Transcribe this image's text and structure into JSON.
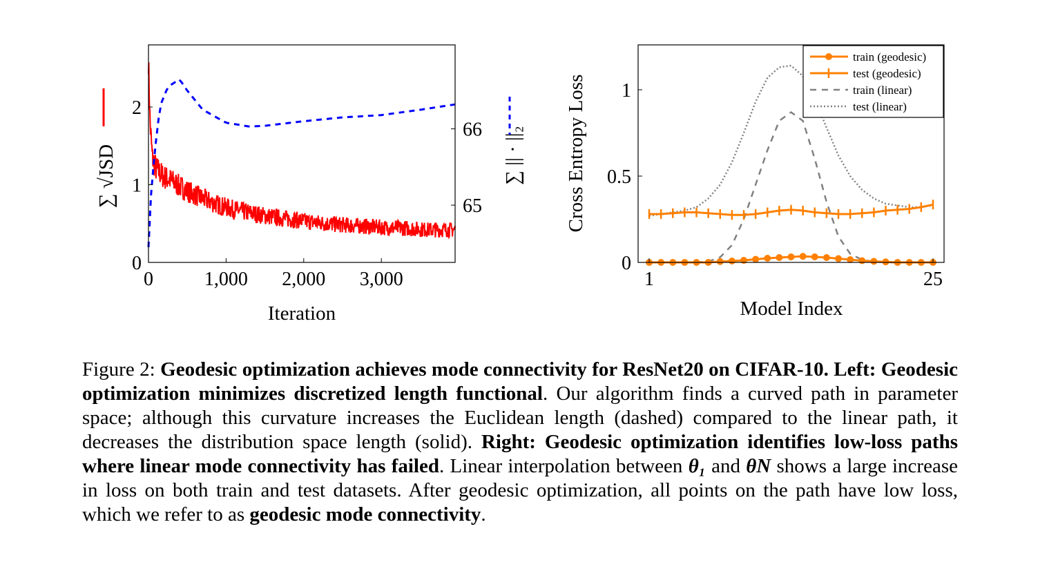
{
  "chart_data": [
    {
      "type": "line",
      "xlabel": "Iteration",
      "ylabel_left": "∑ √JSD",
      "ylabel_right": "∑ || · ||₂",
      "xlim": [
        0,
        3950
      ],
      "ylim_left": [
        0,
        2.8
      ],
      "ylim_right": [
        64.25,
        67.1
      ],
      "x_ticks": [
        "0",
        "1,000",
        "2,000",
        "3,000"
      ],
      "y_ticks_left": [
        "0",
        "1",
        "2"
      ],
      "y_ticks_right": [
        "65",
        "66"
      ],
      "series": [
        {
          "axis": "left",
          "style": "solid",
          "color": "#ff0000",
          "x": [
            0,
            20,
            50,
            100,
            200,
            300,
            400,
            500,
            700,
            900,
            1100,
            1300,
            1500,
            1800,
            2100,
            2400,
            2700,
            3000,
            3300,
            3600,
            3950
          ],
          "y": [
            2.6,
            1.8,
            1.35,
            1.2,
            1.1,
            1.05,
            0.98,
            0.92,
            0.82,
            0.74,
            0.68,
            0.64,
            0.6,
            0.56,
            0.52,
            0.49,
            0.47,
            0.45,
            0.44,
            0.42,
            0.42
          ]
        },
        {
          "axis": "right",
          "style": "dashed",
          "color": "#0000ff",
          "x": [
            0,
            30,
            80,
            150,
            250,
            400,
            500,
            700,
            1000,
            1300,
            1500,
            2000,
            2500,
            3000,
            3500,
            3950
          ],
          "y": [
            64.45,
            65.1,
            65.7,
            66.3,
            66.55,
            66.65,
            66.5,
            66.25,
            66.08,
            66.03,
            66.04,
            66.1,
            66.15,
            66.18,
            66.25,
            66.32
          ]
        }
      ]
    },
    {
      "type": "line",
      "xlabel": "Model Index",
      "ylabel": "Cross Entropy Loss",
      "xlim": [
        1,
        25
      ],
      "ylim": [
        0,
        1.26
      ],
      "x_ticks": [
        "1",
        "25"
      ],
      "y_ticks": [
        "0",
        "0.5",
        "1"
      ],
      "legend_position": "top-right",
      "series": [
        {
          "name": "train (geodesic)",
          "style": "circle-markers",
          "color": "#ff8000",
          "x": [
            1,
            2,
            3,
            4,
            5,
            6,
            7,
            8,
            9,
            10,
            11,
            12,
            13,
            14,
            15,
            16,
            17,
            18,
            19,
            20,
            21,
            22,
            23,
            24,
            25
          ],
          "y": [
            0.0,
            0.0,
            0.0,
            0.0,
            0.0,
            0.0,
            0.005,
            0.008,
            0.012,
            0.018,
            0.024,
            0.028,
            0.032,
            0.035,
            0.032,
            0.028,
            0.022,
            0.016,
            0.01,
            0.006,
            0.003,
            0.0,
            0.0,
            0.0,
            0.0
          ]
        },
        {
          "name": "test (geodesic)",
          "style": "plus-markers",
          "color": "#ff8000",
          "x": [
            1,
            2,
            3,
            4,
            5,
            6,
            7,
            8,
            9,
            10,
            11,
            12,
            13,
            14,
            15,
            16,
            17,
            18,
            19,
            20,
            21,
            22,
            23,
            24,
            25
          ],
          "y": [
            0.28,
            0.28,
            0.285,
            0.29,
            0.29,
            0.285,
            0.28,
            0.275,
            0.275,
            0.28,
            0.29,
            0.3,
            0.305,
            0.3,
            0.29,
            0.285,
            0.28,
            0.28,
            0.285,
            0.29,
            0.3,
            0.305,
            0.31,
            0.32,
            0.335
          ]
        },
        {
          "name": "train (linear)",
          "style": "dashed",
          "color": "#808080",
          "x": [
            1,
            2,
            3,
            4,
            5,
            6,
            7,
            8,
            9,
            10,
            11,
            12,
            13,
            14,
            15,
            16,
            17,
            18,
            19,
            20,
            21,
            22,
            23,
            24,
            25
          ],
          "y": [
            0.0,
            0.0,
            0.0,
            0.0,
            0.0,
            0.005,
            0.03,
            0.1,
            0.25,
            0.45,
            0.65,
            0.82,
            0.87,
            0.82,
            0.6,
            0.35,
            0.15,
            0.05,
            0.015,
            0.005,
            0.0,
            0.0,
            0.0,
            0.0,
            0.0
          ]
        },
        {
          "name": "test (linear)",
          "style": "dotted",
          "color": "#808080",
          "x": [
            1,
            2,
            3,
            4,
            5,
            6,
            7,
            8,
            9,
            10,
            11,
            12,
            13,
            14,
            15,
            16,
            17,
            18,
            19,
            20,
            21,
            22,
            23,
            24,
            25
          ],
          "y": [
            0.27,
            0.28,
            0.29,
            0.3,
            0.32,
            0.37,
            0.45,
            0.58,
            0.75,
            0.93,
            1.07,
            1.13,
            1.14,
            1.08,
            0.95,
            0.78,
            0.62,
            0.5,
            0.42,
            0.37,
            0.34,
            0.33,
            0.32,
            0.32,
            0.33
          ]
        }
      ]
    }
  ],
  "caption": {
    "prefix": "Figure 2: ",
    "bold1": "Geodesic optimization achieves mode connectivity for ResNet20 on CIFAR-10. Left: Geodesic optimization minimizes discretized length functional",
    "text1": ". Our algorithm finds a curved path in parameter space; although this curvature increases the Euclidean length (dashed) compared to the linear path, it decreases the distribution space length (solid). ",
    "bold2": "Right: Geodesic optimization identifies low-loss paths where linear mode connectivity has failed",
    "text2": ". Linear interpolation between ",
    "theta1": "θ₁",
    "text3": " and ",
    "thetaN": "θN",
    "text4": " shows a large increase in loss on both train and test datasets. After geodesic optimization, all points on the path have low loss, which we refer to as ",
    "bold3": "geodesic mode connectivity",
    "text5": "."
  }
}
